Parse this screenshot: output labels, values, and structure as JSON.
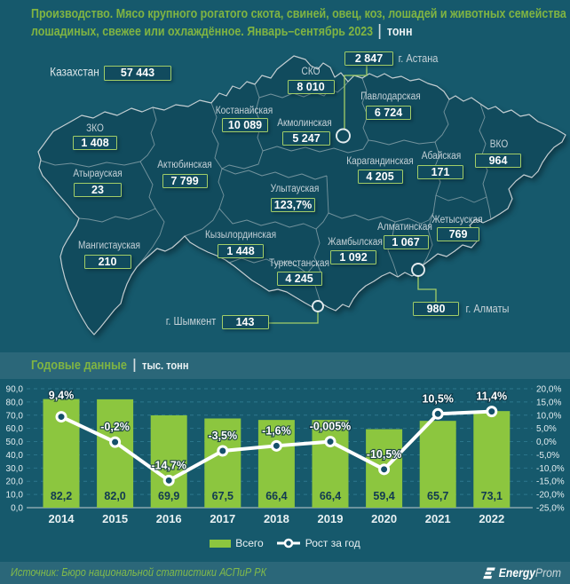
{
  "title": {
    "line1": "Производство. Мясо крупного рогатого скота, свиней, овец, коз, лошадей и животных семейства",
    "line2": "лошадиных, свежее или охлаждённое. Январь–сентябрь 2023",
    "unit": "тонн"
  },
  "map": {
    "regions": [
      {
        "id": "kz",
        "name": "Казахстан",
        "value": "57 443"
      },
      {
        "id": "sko",
        "name": "СКО",
        "value": "8 010"
      },
      {
        "id": "ast",
        "name": "г. Астана",
        "value": "2 847"
      },
      {
        "id": "pav",
        "name": "Павлодарская",
        "value": "6 724"
      },
      {
        "id": "kos",
        "name": "Костанайская",
        "value": "10 089"
      },
      {
        "id": "akm",
        "name": "Акмолинская",
        "value": "5 247"
      },
      {
        "id": "zko",
        "name": "ЗКО",
        "value": "1 408"
      },
      {
        "id": "akt",
        "name": "Актюбинская",
        "value": "7 799"
      },
      {
        "id": "aty",
        "name": "Атырауская",
        "value": "23"
      },
      {
        "id": "kar",
        "name": "Карагандинская",
        "value": "4 205"
      },
      {
        "id": "aba",
        "name": "Абайская",
        "value": "171"
      },
      {
        "id": "vko",
        "name": "ВКО",
        "value": "964"
      },
      {
        "id": "uly",
        "name": "Улытауская",
        "value": "123,7%"
      },
      {
        "id": "kyz",
        "name": "Кызылординская",
        "value": "1 448"
      },
      {
        "id": "man",
        "name": "Мангистауская",
        "value": "210"
      },
      {
        "id": "tur",
        "name": "Туркестанская",
        "value": "4 245"
      },
      {
        "id": "zha",
        "name": "Жамбылская",
        "value": "1 092"
      },
      {
        "id": "alm",
        "name": "Алматинская",
        "value": "1 067"
      },
      {
        "id": "zhe",
        "name": "Жетысуская",
        "value": "769"
      },
      {
        "id": "shy",
        "name": "г. Шымкент",
        "value": "143"
      },
      {
        "id": "aly",
        "name": "г. Алматы",
        "value": "980"
      }
    ]
  },
  "section": {
    "title": "Годовые данные",
    "unit": "тыс. тонн"
  },
  "chart_data": {
    "type": "bar",
    "categories": [
      "2014",
      "2015",
      "2016",
      "2017",
      "2018",
      "2019",
      "2020",
      "2021",
      "2022"
    ],
    "series": [
      {
        "name": "Всего",
        "type": "bar",
        "values": [
          82.2,
          82.0,
          69.9,
          67.5,
          66.4,
          66.4,
          59.4,
          65.7,
          73.1
        ],
        "labels": [
          "82,2",
          "82,0",
          "69,9",
          "67,5",
          "66,4",
          "66,4",
          "59,4",
          "65,7",
          "73,1"
        ]
      },
      {
        "name": "Рост за год",
        "type": "line",
        "values": [
          9.4,
          -0.2,
          -14.7,
          -3.5,
          -1.6,
          -0.005,
          -10.5,
          10.5,
          11.4
        ],
        "labels": [
          "9,4%",
          "-0,2%",
          "-14,7%",
          "-3,5%",
          "-1,6%",
          "-0,005%",
          "-10,5%",
          "10,5%",
          "11,4%"
        ]
      }
    ],
    "title": "Годовые данные",
    "ylabel": "тыс. тонн",
    "left_axis": {
      "min": 0,
      "max": 90,
      "step": 10,
      "labels": [
        "90,0",
        "80,0",
        "70,0",
        "60,0",
        "50,0",
        "40,0",
        "30,0",
        "20,0",
        "10,0",
        "0,0"
      ]
    },
    "right_axis": {
      "min": -25,
      "max": 20,
      "step": 5,
      "labels": [
        "20,0%",
        "15,0%",
        "10,0%",
        "5,0%",
        "0,0%",
        "-5,0%",
        "-10,0%",
        "-15,0%",
        "-20,0%",
        "-25,0%"
      ]
    }
  },
  "legend": {
    "bars": "Всего",
    "line": "Рост за год"
  },
  "footer": {
    "source": "Источник: Бюро национальной статистики АСПиР РК",
    "logo_bold": "Energy",
    "logo_light": "Prom"
  },
  "colors": {
    "accent_green": "#80B442",
    "bar_green": "#8CC63F",
    "badge_border": "#A2CE68",
    "background": "#16596C",
    "band": "#2B6779",
    "map_fill": "#114B5D",
    "line_white": "#FFFFFF"
  }
}
